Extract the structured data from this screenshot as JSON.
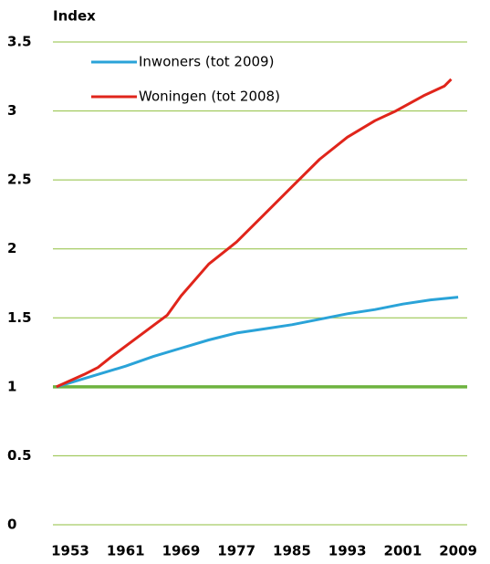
{
  "chart_data": {
    "type": "line",
    "y_label": "Index",
    "xlim": [
      1950.5,
      2010.3
    ],
    "xticks": [
      1953,
      1961,
      1969,
      1977,
      1985,
      1993,
      2001,
      2009
    ],
    "ylim": [
      0,
      3.5
    ],
    "yticks": [
      0,
      0.5,
      1,
      1.5,
      2,
      2.5,
      3,
      3.5
    ],
    "grid": true,
    "grid_color": "#8fbf3f",
    "reference_line": 1,
    "reference_color": "#6db33f",
    "series": [
      {
        "name": "Inwoners (tot 2009)",
        "color": "#2aa3d8",
        "x": [
          1951,
          1955,
          1961,
          1965,
          1969,
          1973,
          1977,
          1981,
          1985,
          1989,
          1993,
          1997,
          2001,
          2005,
          2009
        ],
        "values": [
          1.0,
          1.06,
          1.15,
          1.22,
          1.28,
          1.34,
          1.39,
          1.42,
          1.45,
          1.49,
          1.53,
          1.56,
          1.6,
          1.63,
          1.65
        ]
      },
      {
        "name": "Woningen (tot 2008)",
        "color": "#e0251b",
        "x": [
          1951,
          1955,
          1957,
          1959,
          1963,
          1967,
          1969,
          1973,
          1977,
          1981,
          1985,
          1989,
          1993,
          1997,
          2000,
          2004,
          2007,
          2008
        ],
        "values": [
          1.0,
          1.09,
          1.14,
          1.22,
          1.37,
          1.52,
          1.66,
          1.89,
          2.05,
          2.25,
          2.45,
          2.65,
          2.81,
          2.93,
          3.0,
          3.11,
          3.18,
          3.23
        ]
      }
    ]
  }
}
